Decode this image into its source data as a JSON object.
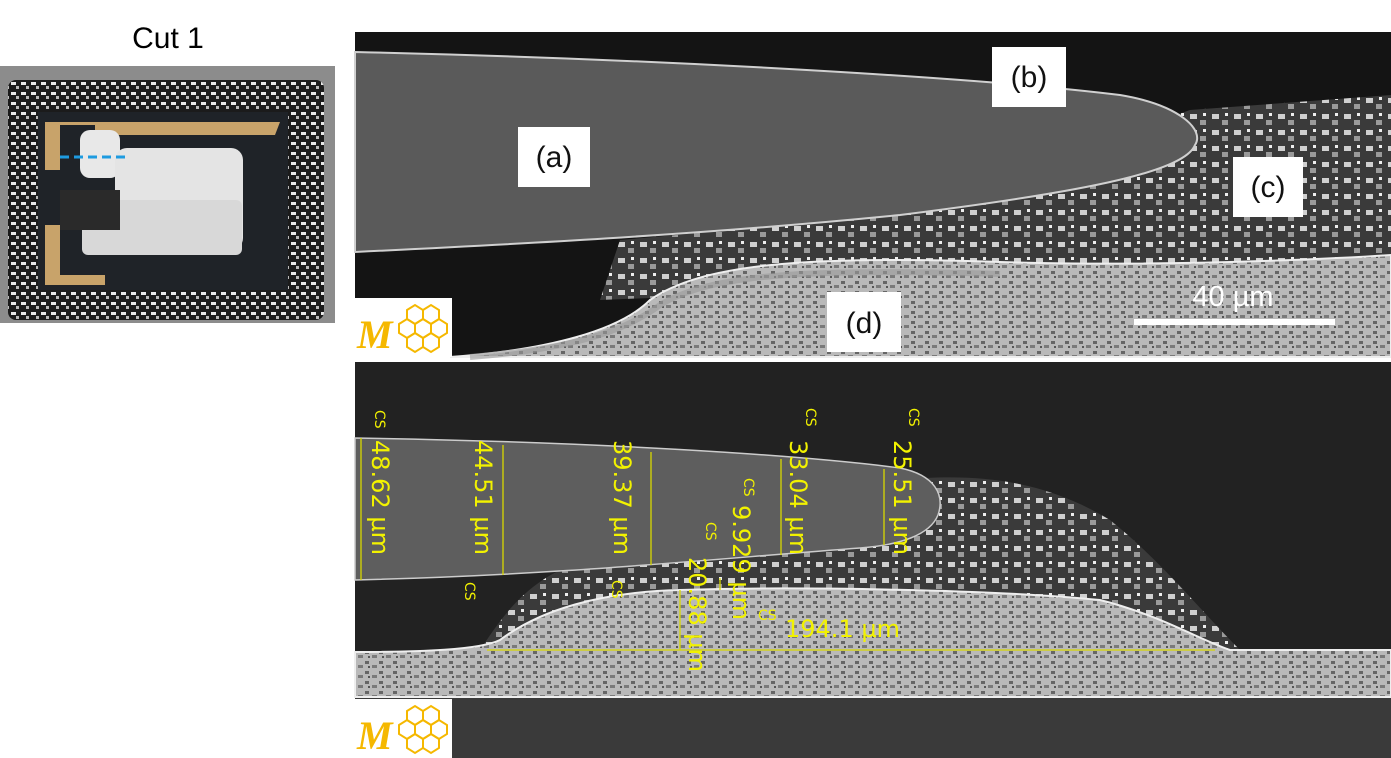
{
  "figure": {
    "left_panel": {
      "title": "Cut 1",
      "cut_line_color": "#1e9be0"
    },
    "top_panel": {
      "labels": [
        "(a)",
        "(b)",
        "(c)",
        "(d)"
      ],
      "scale_bar": "40 µm"
    },
    "bottom_panel": {
      "measurement_color": "#f2f200",
      "cs_mark": "CS",
      "measurements": [
        "48.62 µm",
        "44.51 µm",
        "39.37 µm",
        "20.88 µm",
        "9.929 µm",
        "33.04 µm",
        "25.51 µm",
        "194.1 µm"
      ]
    },
    "logo": {
      "letter": "M",
      "color": "#f5b800"
    }
  }
}
